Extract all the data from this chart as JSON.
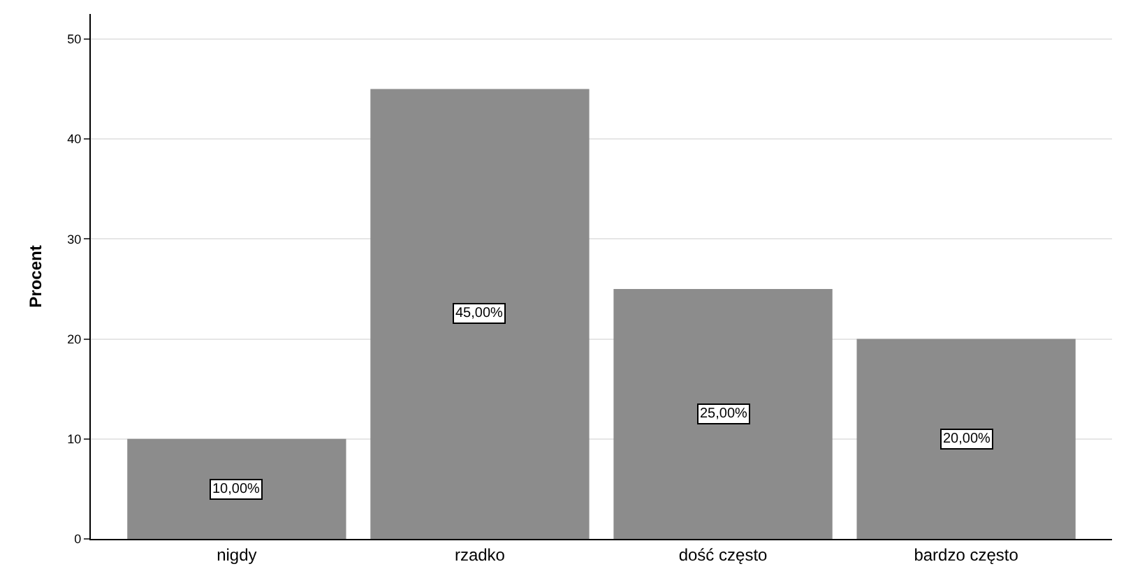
{
  "chart_data": {
    "type": "bar",
    "ylabel": "Procent",
    "categories": [
      "nigdy",
      "rzadko",
      "dość często",
      "bardzo często"
    ],
    "values": [
      10,
      45,
      25,
      20
    ],
    "color": "#8c8c8c",
    "value_labels": [
      "10,00%",
      "45,00%",
      "25,00%",
      "20,00%"
    ],
    "ylim": [
      0,
      52.5
    ],
    "yticks": [
      0,
      10,
      20,
      30,
      40,
      50
    ],
    "grid": "y",
    "legend": false
  }
}
